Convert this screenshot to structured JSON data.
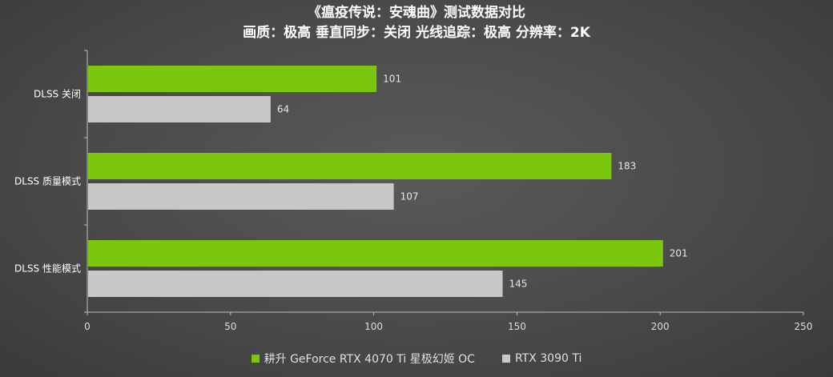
{
  "title_line1": "《瘟疫传说：安魂曲》测试数据对比",
  "title_line2": "画质：极高 垂直同步：关闭 光线追踪：极高 分辨率：2K",
  "chart_data": {
    "type": "bar",
    "orientation": "horizontal",
    "categories": [
      "DLSS 关闭",
      "DLSS 质量模式",
      "DLSS 性能模式"
    ],
    "series": [
      {
        "name": "耕升 GeForce RTX 4070 Ti 星极幻姬 OC",
        "values": [
          101,
          183,
          201
        ],
        "color": "#7ac70e"
      },
      {
        "name": "RTX 3090 Ti",
        "values": [
          64,
          107,
          145
        ],
        "color": "#c8c8c8"
      }
    ],
    "xlim": [
      0,
      250
    ],
    "xticks": [
      "0",
      "50",
      "100",
      "150",
      "200",
      "250"
    ],
    "grid": false,
    "legend_position": "bottom-center"
  }
}
